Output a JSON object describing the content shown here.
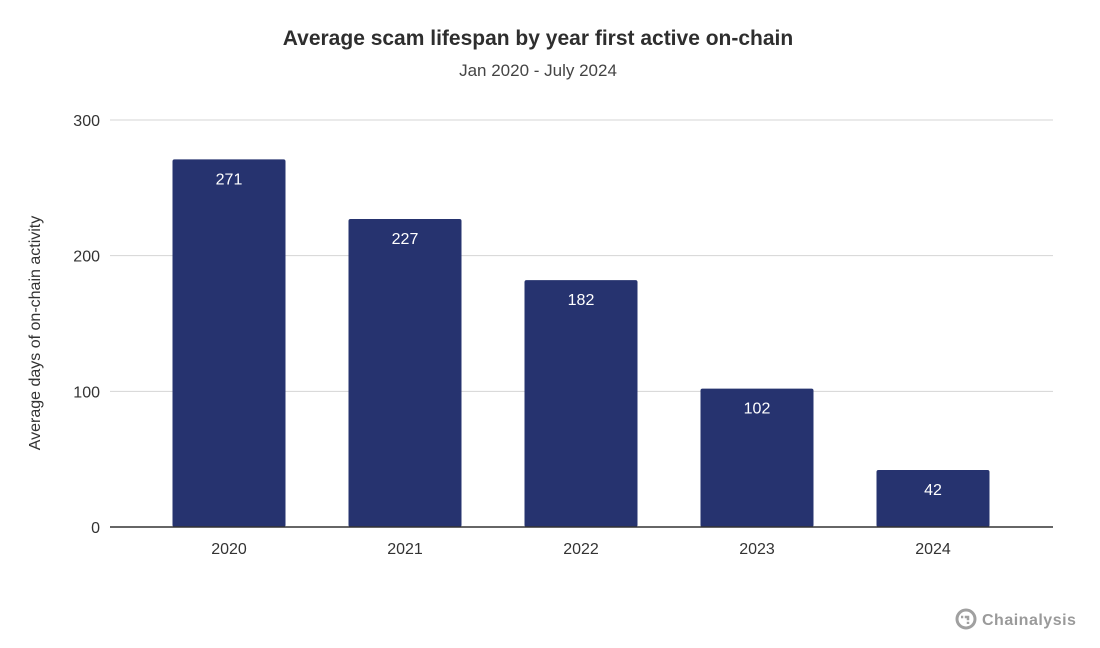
{
  "chart_data": {
    "type": "bar",
    "title": "Average scam lifespan by year first active on-chain",
    "subtitle": "Jan 2020 - July 2024",
    "xlabel": "",
    "ylabel": "Average days of on-chain activity",
    "categories": [
      "2020",
      "2021",
      "2022",
      "2023",
      "2024"
    ],
    "values": [
      271,
      227,
      182,
      102,
      42
    ],
    "data_labels": [
      "271",
      "227",
      "182",
      "102",
      "42"
    ],
    "ylim": [
      0,
      300
    ],
    "yticks": [
      0,
      100,
      200,
      300
    ],
    "ytick_labels": [
      "0",
      "100",
      "200",
      "300"
    ],
    "grid": true,
    "legend": "none",
    "bar_color": "#26336f",
    "label_color": "#ffffff"
  },
  "brand": {
    "name": "Chainalysis",
    "icon": "chainalysis-logo-icon",
    "color": "#9a9a9a"
  }
}
